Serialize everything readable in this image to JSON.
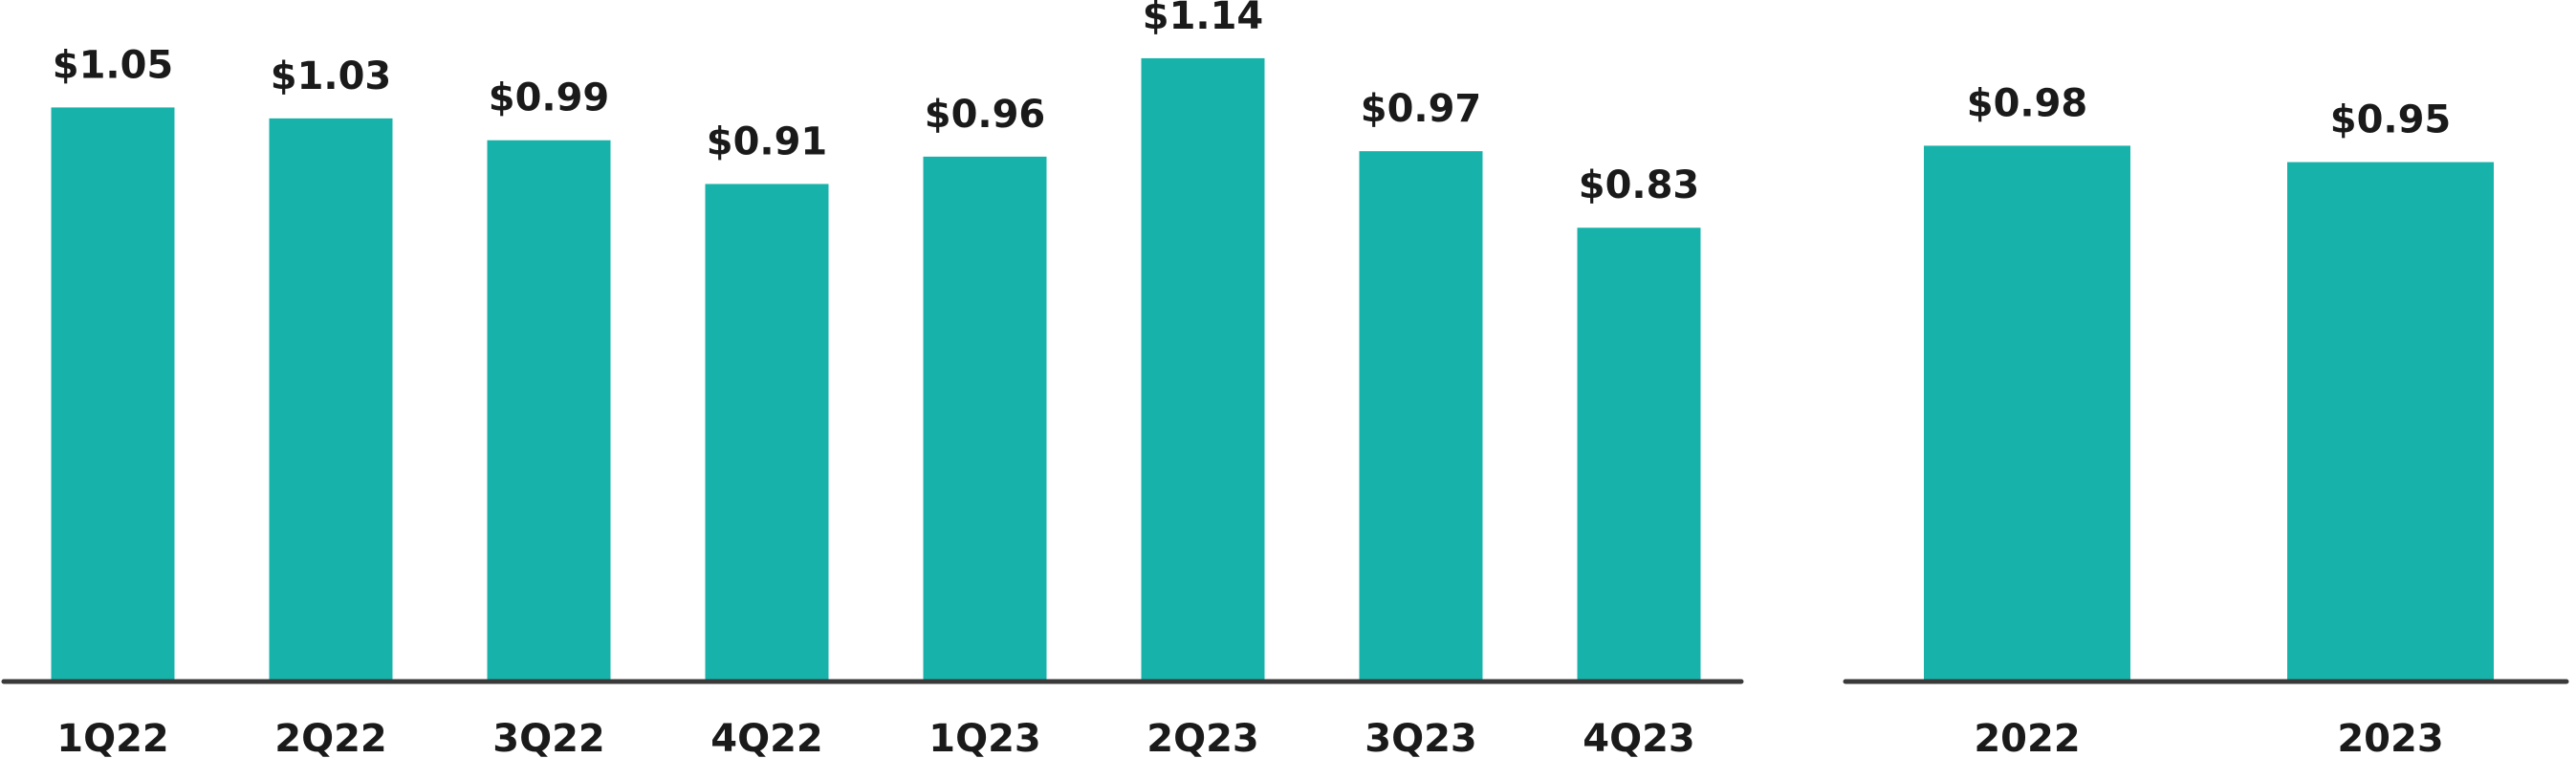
{
  "chart_data": [
    {
      "type": "bar",
      "categories": [
        "1Q22",
        "2Q22",
        "3Q22",
        "4Q22",
        "1Q23",
        "2Q23",
        "3Q23",
        "4Q23"
      ],
      "values": [
        1.05,
        1.03,
        0.99,
        0.91,
        0.96,
        1.14,
        0.97,
        0.83
      ],
      "value_labels": [
        "$1.05",
        "$1.03",
        "$0.99",
        "$0.91",
        "$0.96",
        "$1.14",
        "$0.97",
        "$0.83"
      ],
      "color": "#17b3ab"
    },
    {
      "type": "bar",
      "categories": [
        "2022",
        "2023"
      ],
      "values": [
        0.98,
        0.95
      ],
      "value_labels": [
        "$0.98",
        "$0.95"
      ],
      "color": "#17b3ab"
    }
  ]
}
